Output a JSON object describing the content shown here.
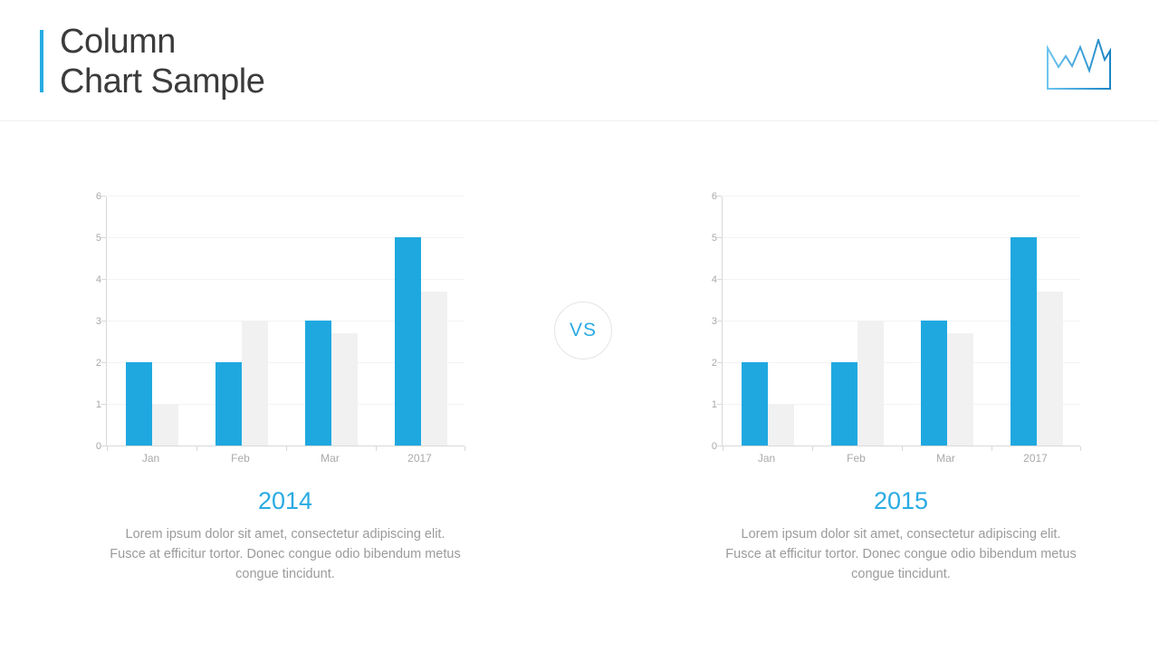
{
  "header": {
    "title_line1": "Column",
    "title_line2": "Chart Sample",
    "accent_color": "#29abe2",
    "logo_icon": "zigzag-line-chart-icon"
  },
  "vs": {
    "label": "VS"
  },
  "panels": [
    {
      "year": "2014",
      "description": "Lorem ipsum dolor sit amet, consectetur adipiscing elit. Fusce at efficitur tortor. Donec congue odio bibendum metus congue tincidunt."
    },
    {
      "year": "2015",
      "description": "Lorem ipsum dolor sit amet, consectetur adipiscing elit. Fusce at efficitur tortor. Donec congue odio bibendum metus congue tincidunt."
    }
  ],
  "chart_data": [
    {
      "type": "bar",
      "title": "2014",
      "categories": [
        "Jan",
        "Feb",
        "Mar",
        "2017"
      ],
      "series": [
        {
          "name": "primary",
          "color": "#1fa8e0",
          "values": [
            2,
            2,
            3,
            5
          ]
        },
        {
          "name": "secondary",
          "color": "#f1f1f1",
          "values": [
            1,
            3,
            2.7,
            3.7
          ]
        }
      ],
      "xlabel": "",
      "ylabel": "",
      "ylim": [
        0,
        6
      ],
      "yticks": [
        0,
        1,
        2,
        3,
        4,
        5,
        6
      ],
      "grid": true,
      "legend": "none"
    },
    {
      "type": "bar",
      "title": "2015",
      "categories": [
        "Jan",
        "Feb",
        "Mar",
        "2017"
      ],
      "series": [
        {
          "name": "primary",
          "color": "#1fa8e0",
          "values": [
            2,
            2,
            3,
            5
          ]
        },
        {
          "name": "secondary",
          "color": "#f1f1f1",
          "values": [
            1,
            3,
            2.7,
            3.7
          ]
        }
      ],
      "xlabel": "",
      "ylabel": "",
      "ylim": [
        0,
        6
      ],
      "yticks": [
        0,
        1,
        2,
        3,
        4,
        5,
        6
      ],
      "grid": true,
      "legend": "none"
    }
  ]
}
